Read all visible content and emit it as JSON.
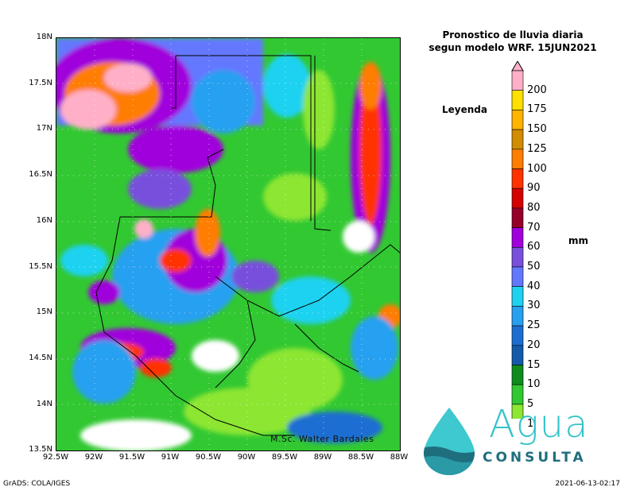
{
  "title_line1": "Pronostico de lluvia diaria",
  "title_line2": "segun modelo WRF.   15JUN2021",
  "legend_title": "Leyenda",
  "units": "mm",
  "author": "M.Sc. Walter Bardales",
  "footer_left": "GrADS: COLA/IGES",
  "footer_right": "2021-06-13-02:17",
  "logo": {
    "word": "Agua",
    "sub": "CONSULTA"
  },
  "lat_ticks": [
    "18N",
    "17.5N",
    "17N",
    "16.5N",
    "16N",
    "15.5N",
    "15N",
    "14.5N",
    "14N",
    "13.5N"
  ],
  "lon_ticks": [
    "92.5W",
    "92W",
    "91.5W",
    "91W",
    "90.5W",
    "90W",
    "89.5W",
    "89W",
    "88.5W",
    "88W"
  ],
  "colorbar": {
    "levels": [
      "200",
      "175",
      "150",
      "125",
      "100",
      "90",
      "80",
      "70",
      "60",
      "50",
      "40",
      "30",
      "25",
      "20",
      "15",
      "10",
      "5",
      "1"
    ],
    "colors": [
      "#ffb0c8",
      "#ffe000",
      "#ffb400",
      "#d28c00",
      "#ff7d00",
      "#ff3200",
      "#d40000",
      "#960028",
      "#a000dc",
      "#7850dc",
      "#6478ff",
      "#1ed2f0",
      "#28a0f0",
      "#1e6ed2",
      "#145aaa",
      "#0f8c1e",
      "#32c832",
      "#8ce632",
      "#c8ff64"
    ],
    "arrow_color": "#ffb0c8"
  }
}
